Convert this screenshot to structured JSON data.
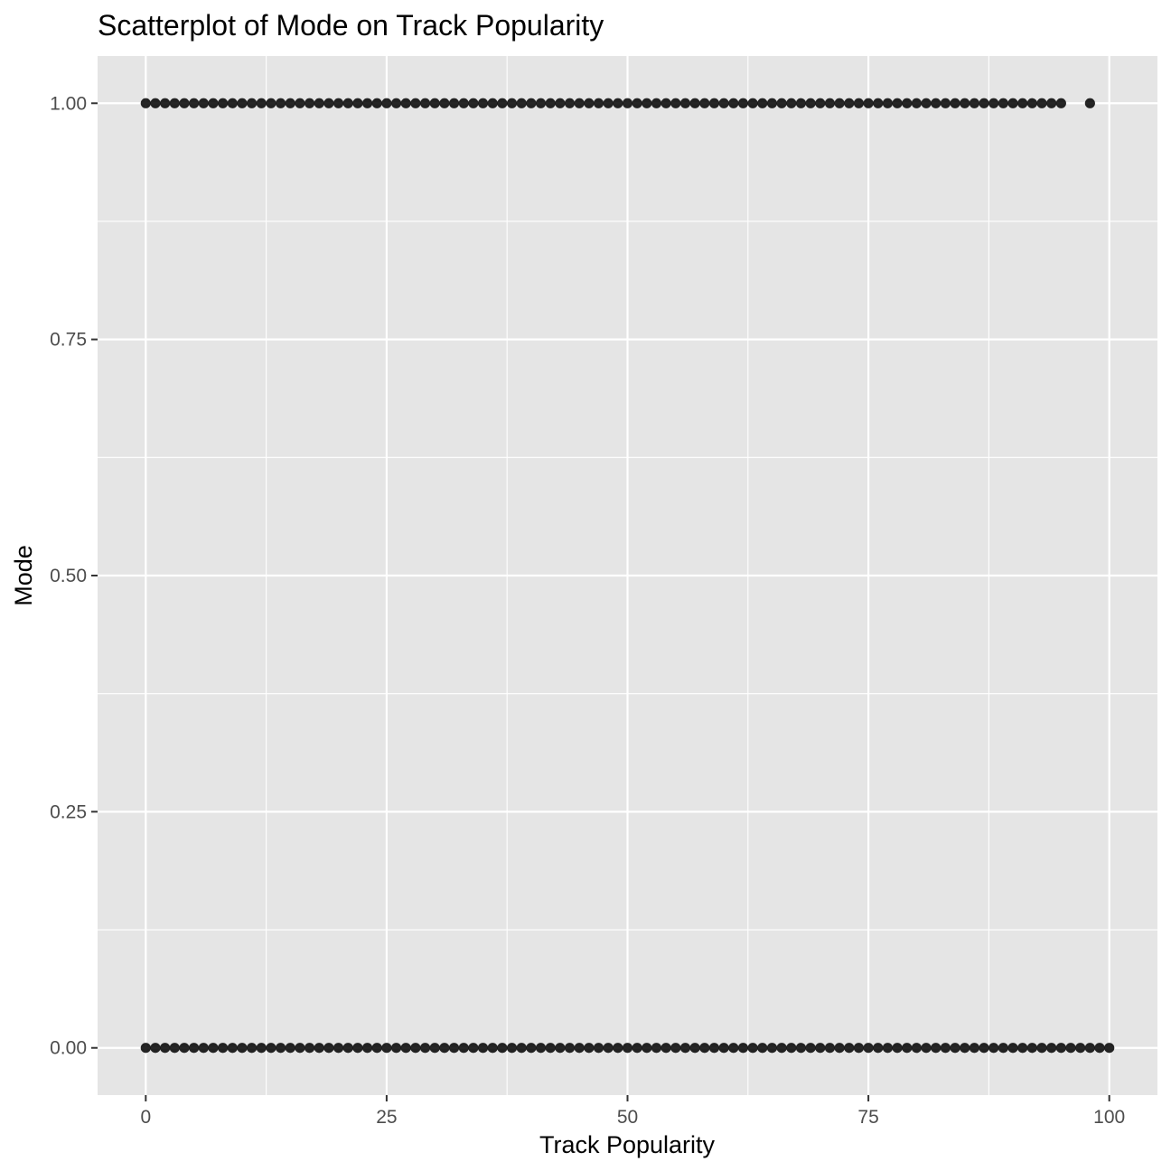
{
  "chart_data": {
    "type": "scatter",
    "title": "Scatterplot of Mode on Track Popularity",
    "xlabel": "Track Popularity",
    "ylabel": "Mode",
    "xlim": [
      -5,
      105
    ],
    "ylim": [
      -0.05,
      1.05
    ],
    "x_ticks": [
      0,
      25,
      50,
      75,
      100
    ],
    "x_tick_labels": [
      "0",
      "25",
      "50",
      "75",
      "100"
    ],
    "y_ticks": [
      0,
      0.25,
      0.5,
      0.75,
      1
    ],
    "y_tick_labels": [
      "0.00",
      "0.25",
      "0.50",
      "0.75",
      "1.00"
    ],
    "grid": true,
    "series": [
      {
        "values": [
          {
            "mode": 1,
            "x_from": 0,
            "x_to": 95,
            "step": 1
          },
          {
            "mode": 1,
            "x": [
              98
            ]
          },
          {
            "mode": 0,
            "x_from": 0,
            "x_to": 100,
            "step": 1
          }
        ]
      }
    ],
    "colors": {
      "panel": "#e5e5e5",
      "grid": "#ffffff",
      "point": "#000000",
      "tick": "#333333",
      "tick_label": "#4d4d4d"
    }
  }
}
